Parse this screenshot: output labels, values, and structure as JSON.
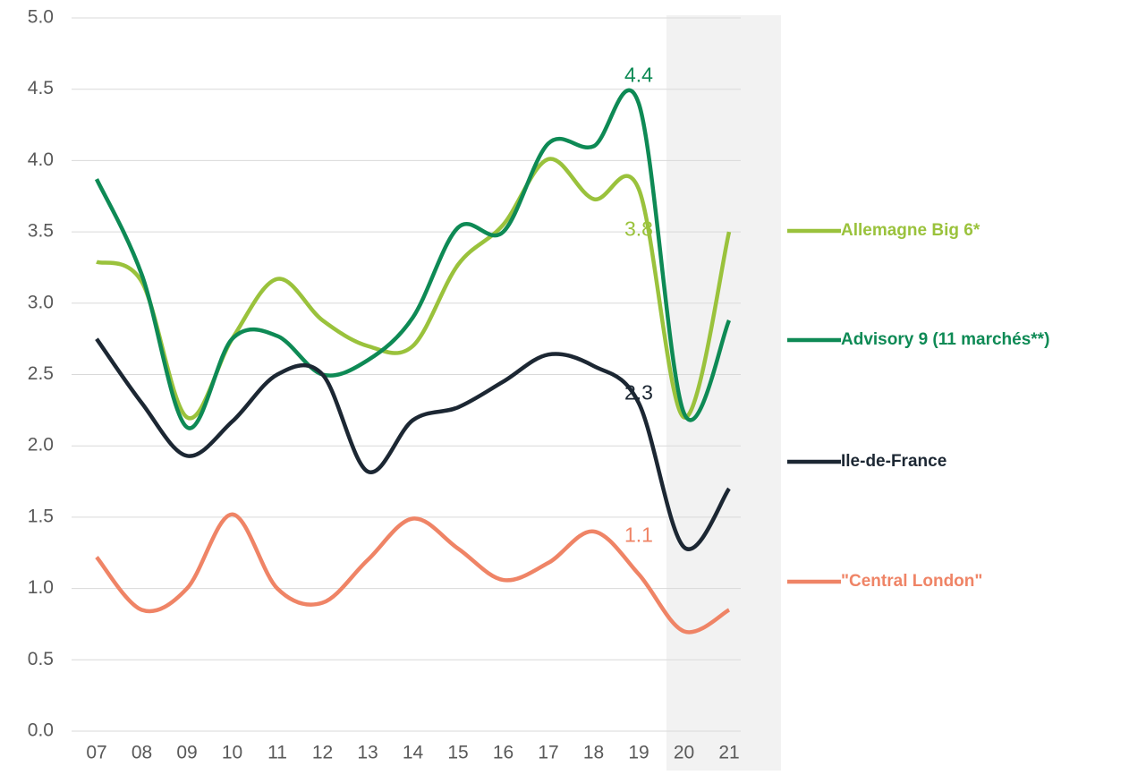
{
  "chart_data": {
    "type": "line",
    "categories": [
      "07",
      "08",
      "09",
      "10",
      "11",
      "12",
      "13",
      "14",
      "15",
      "16",
      "17",
      "18",
      "19",
      "20",
      "21"
    ],
    "series": [
      {
        "name": "Allemagne Big 6*",
        "color": "#9ac23c",
        "values": [
          3.29,
          3.15,
          2.2,
          2.75,
          3.17,
          2.88,
          2.7,
          2.7,
          3.27,
          3.55,
          4.01,
          3.73,
          3.8,
          2.2,
          3.5
        ],
        "value_labels": [
          null,
          null,
          null,
          null,
          null,
          null,
          null,
          null,
          null,
          null,
          null,
          null,
          "3.8",
          null,
          null
        ]
      },
      {
        "name": "Advisory 9 (11 marchés**)",
        "color": "#0e8a55",
        "values": [
          3.87,
          3.2,
          2.13,
          2.75,
          2.77,
          2.5,
          2.6,
          2.9,
          3.53,
          3.5,
          4.12,
          4.1,
          4.4,
          2.23,
          2.88
        ],
        "value_labels": [
          null,
          null,
          null,
          null,
          null,
          null,
          null,
          null,
          null,
          null,
          null,
          null,
          "4.4",
          null,
          null
        ]
      },
      {
        "name": "Ile-de-France",
        "color": "#1c2733",
        "values": [
          2.75,
          2.3,
          1.93,
          2.17,
          2.5,
          2.5,
          1.82,
          2.18,
          2.27,
          2.45,
          2.64,
          2.56,
          2.3,
          1.29,
          1.7
        ],
        "value_labels": [
          null,
          null,
          null,
          null,
          null,
          null,
          null,
          null,
          null,
          null,
          null,
          null,
          "2.3",
          null,
          null
        ]
      },
      {
        "name": "\"Central London\"",
        "color": "#ef8466",
        "values": [
          1.22,
          0.85,
          1.0,
          1.52,
          1.0,
          0.9,
          1.2,
          1.49,
          1.28,
          1.06,
          1.18,
          1.4,
          1.1,
          0.7,
          0.85
        ],
        "value_labels": [
          null,
          null,
          null,
          null,
          null,
          null,
          null,
          null,
          null,
          null,
          null,
          null,
          "1.1",
          null,
          null
        ]
      }
    ],
    "ylim": [
      0,
      5
    ],
    "yticks": [
      {
        "value": 0,
        "label": "0.0"
      },
      {
        "value": 0.5,
        "label": "0.5"
      },
      {
        "value": 1,
        "label": "1.0"
      },
      {
        "value": 1.5,
        "label": "1.5"
      },
      {
        "value": 2,
        "label": "2.0"
      },
      {
        "value": 2.5,
        "label": "2.5"
      },
      {
        "value": 3,
        "label": "3.0"
      },
      {
        "value": 3.5,
        "label": "3.5"
      },
      {
        "value": 4,
        "label": "4.0"
      },
      {
        "value": 4.5,
        "label": "4.5"
      },
      {
        "value": 5,
        "label": "5.0"
      }
    ],
    "grid": true,
    "legend": "right"
  }
}
